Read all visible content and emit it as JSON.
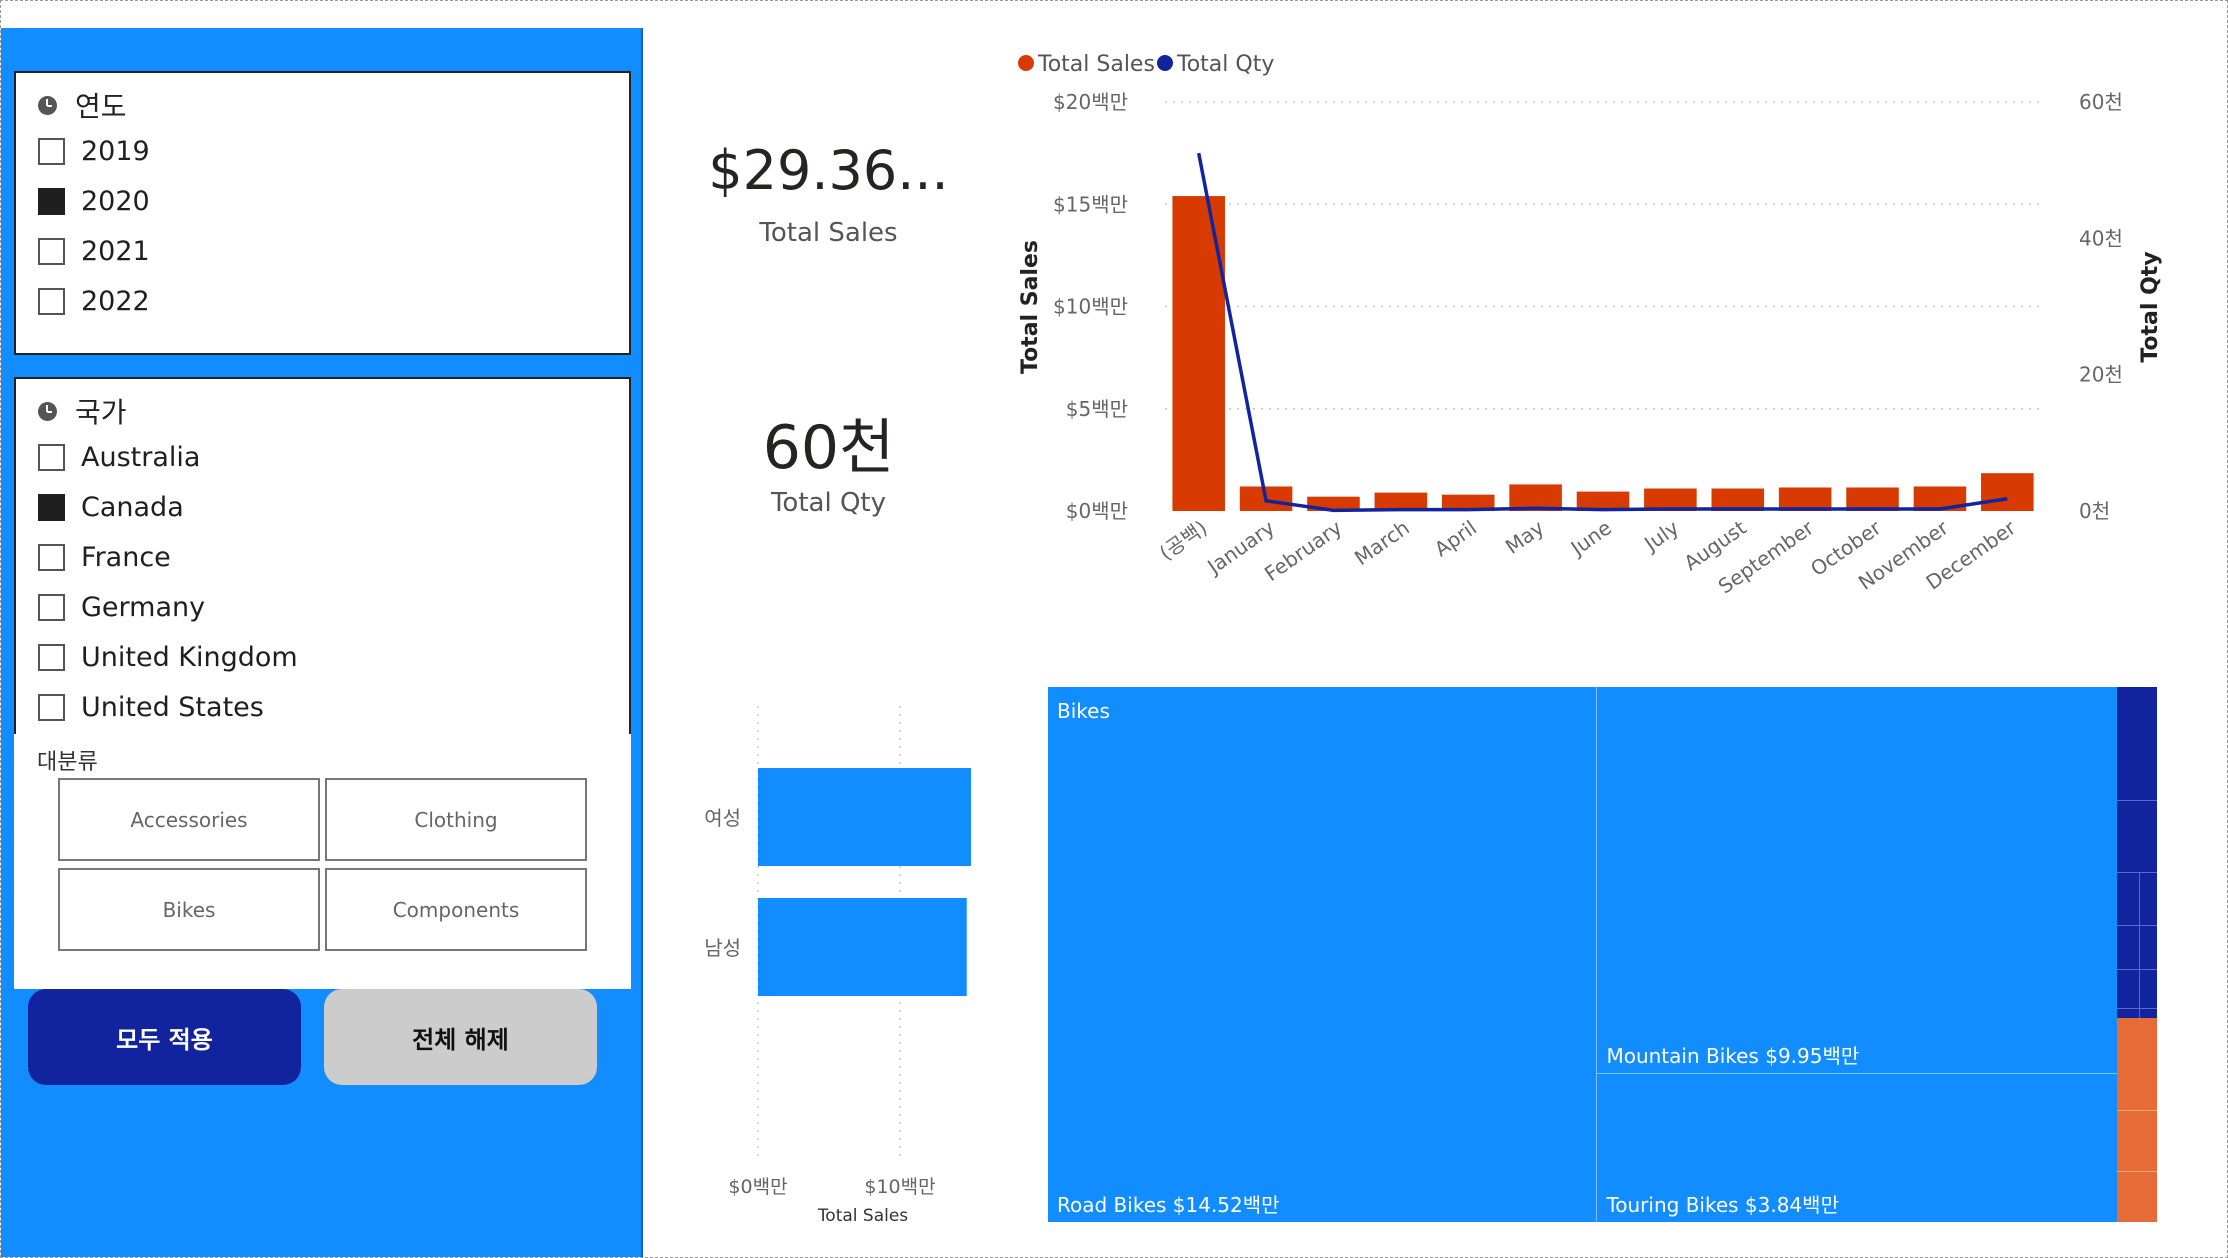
{
  "filters": {
    "year": {
      "title": "연도",
      "options": [
        {
          "label": "2019",
          "checked": false
        },
        {
          "label": "2020",
          "checked": true
        },
        {
          "label": "2021",
          "checked": false
        },
        {
          "label": "2022",
          "checked": false
        }
      ]
    },
    "country": {
      "title": "국가",
      "options": [
        {
          "label": "Australia",
          "checked": false
        },
        {
          "label": "Canada",
          "checked": true
        },
        {
          "label": "France",
          "checked": false
        },
        {
          "label": "Germany",
          "checked": false
        },
        {
          "label": "United Kingdom",
          "checked": false
        },
        {
          "label": "United States",
          "checked": false
        }
      ]
    },
    "category": {
      "title": "대분류",
      "tiles": [
        "Accessories",
        "Clothing",
        "Bikes",
        "Components"
      ]
    },
    "apply_label": "모두 적용",
    "clear_label": "전체 해제"
  },
  "cards": {
    "sales": {
      "value": "$29.36...",
      "label": "Total Sales"
    },
    "qty": {
      "value": "60천",
      "label": "Total Qty"
    }
  },
  "colors": {
    "panel": "#118DFF",
    "sales_bar": "#D83B01",
    "qty_line": "#12239E",
    "apply_button": "#12239E",
    "clear_button": "#CCCCCC",
    "treemap_bikes": "#118DFF",
    "treemap_accessories": "#12239E",
    "treemap_clothing": "#E66C37"
  },
  "chart_data": [
    {
      "type": "bar",
      "legend": [
        "Total Sales",
        "Total Qty"
      ],
      "legend_position": "top-left",
      "ylabel": "Total Sales",
      "y2label": "Total Qty",
      "categories": [
        "(공백)",
        "January",
        "February",
        "March",
        "April",
        "May",
        "June",
        "July",
        "August",
        "September",
        "October",
        "November",
        "December"
      ],
      "series": [
        {
          "name": "Total Sales",
          "kind": "bar",
          "axis": "left",
          "values": [
            15.4,
            1.2,
            0.7,
            0.9,
            0.8,
            1.3,
            0.95,
            1.1,
            1.1,
            1.15,
            1.15,
            1.2,
            1.85
          ]
        },
        {
          "name": "Total Qty",
          "kind": "line",
          "axis": "right",
          "values": [
            52.5,
            1.5,
            0.1,
            0.2,
            0.2,
            0.4,
            0.2,
            0.3,
            0.3,
            0.3,
            0.3,
            0.3,
            1.8
          ]
        }
      ],
      "ylim": [
        0,
        20
      ],
      "y2lim": [
        0,
        60
      ],
      "yticks": [
        "$0백만",
        "$5백만",
        "$10백만",
        "$15백만",
        "$20백만"
      ],
      "y2ticks": [
        "0천",
        "20천",
        "40천",
        "60천"
      ],
      "grid": true
    },
    {
      "type": "bar",
      "orientation": "horizontal",
      "categories": [
        "여성",
        "남성"
      ],
      "values": [
        15.0,
        14.7
      ],
      "xlabel": "Total Sales",
      "xlim": [
        0,
        15.5
      ],
      "xticks": [
        "$0백만",
        "$10백만"
      ],
      "grid": true
    },
    {
      "type": "treemap",
      "groups": [
        {
          "name": "Bikes",
          "value": 28.31,
          "children": [
            {
              "name": "Road Bikes",
              "label": "Road Bikes $14.52백만",
              "value": 14.52
            },
            {
              "name": "Mountain Bikes",
              "label": "Mountain Bikes $9.95백만",
              "value": 9.95
            },
            {
              "name": "Touring Bikes",
              "label": "Touring Bikes $3.84백만",
              "value": 3.84
            }
          ]
        },
        {
          "name": "Accessories",
          "value": 0.65
        },
        {
          "name": "Clothing",
          "value": 0.4
        }
      ]
    }
  ]
}
